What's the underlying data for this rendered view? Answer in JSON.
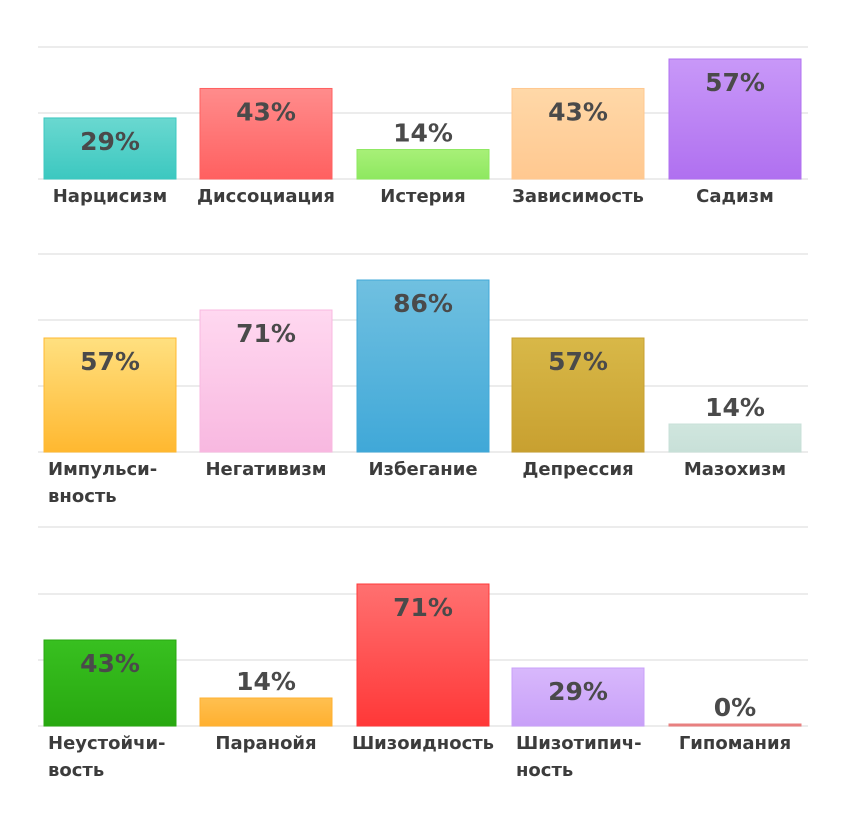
{
  "chart_data": [
    {
      "type": "bar",
      "categories": [
        "Нарцисизм",
        "Диссоциация",
        "Истерия",
        "Зависимость",
        "Садизм"
      ],
      "values": [
        29,
        43,
        14,
        43,
        57
      ],
      "value_labels": [
        "29%",
        "43%",
        "14%",
        "43%",
        "57%"
      ],
      "colors": [
        [
          "#3cc8c0",
          "#6ad8d0"
        ],
        [
          "#ff6060",
          "#ff8c8c"
        ],
        [
          "#8ee860",
          "#a8f078"
        ],
        [
          "#ffc890",
          "#ffd8a8"
        ],
        [
          "#b070f0",
          "#c898f8"
        ]
      ],
      "ylim": [
        0,
        60
      ],
      "grid": true
    },
    {
      "type": "bar",
      "categories": [
        "Импульси-\nвность",
        "Негативизм",
        "Избегание",
        "Депрессия",
        "Мазохизм"
      ],
      "values": [
        57,
        71,
        86,
        57,
        14
      ],
      "value_labels": [
        "57%",
        "71%",
        "86%",
        "57%",
        "14%"
      ],
      "colors": [
        [
          "#ffb830",
          "#ffe080"
        ],
        [
          "#f8b8e0",
          "#ffd8f0"
        ],
        [
          "#40a8d8",
          "#70c0e0"
        ],
        [
          "#c8a030",
          "#d8b848"
        ],
        [
          "#c8e0d8",
          "#d0e6de"
        ]
      ],
      "ylim": [
        0,
        90
      ],
      "grid": true
    },
    {
      "type": "bar",
      "categories": [
        "Неустойчи-\nвость",
        "Паранойя",
        "Шизоидность",
        "Шизотипич-\nность",
        "Гипомания"
      ],
      "values": [
        43,
        14,
        71,
        29,
        0
      ],
      "value_labels": [
        "43%",
        "14%",
        "71%",
        "29%",
        "0%"
      ],
      "colors": [
        [
          "#28a810",
          "#38c020"
        ],
        [
          "#ffb030",
          "#ffc050"
        ],
        [
          "#ff3838",
          "#ff7070"
        ],
        [
          "#c8a0f8",
          "#d8b8fc"
        ],
        [
          "#e88080",
          "#e88080"
        ]
      ],
      "ylim": [
        0,
        75
      ],
      "grid": true
    }
  ]
}
